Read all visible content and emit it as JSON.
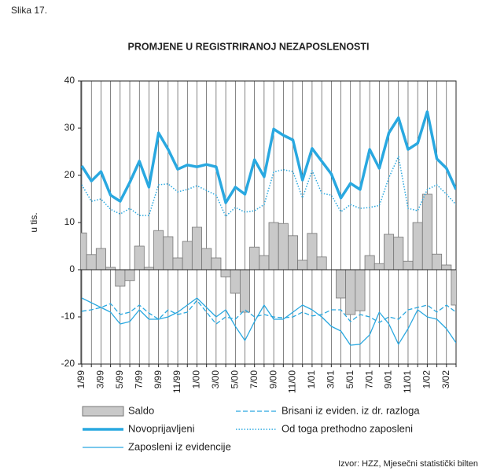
{
  "chart_data": {
    "type": "bar_line",
    "figure_label": "Slika 17.",
    "title": "PROMJENE U REGISTRIRANOJ NEZAPOSLENOSTI",
    "ylabel": "u tis.",
    "source": "Izvor: HZZ, Mjesečni statistički bilten",
    "categories": [
      "1/99",
      null,
      "3/99",
      null,
      "5/99",
      null,
      "7/99",
      null,
      "9/99",
      null,
      "11/99",
      null,
      "1/00",
      null,
      "3/00",
      null,
      "5/00",
      null,
      "7/00",
      null,
      "9/00",
      null,
      "11/00",
      null,
      "1/01",
      null,
      "3/01",
      null,
      "5/01",
      null,
      "7/01",
      null,
      "9/01",
      null,
      "11/01",
      null,
      "1/02",
      null,
      "3/02",
      null
    ],
    "ylim": [
      -20,
      40
    ],
    "yticks": [
      -20,
      -10,
      0,
      10,
      20,
      30,
      40
    ],
    "series": [
      {
        "name": "Saldo",
        "kind": "bar",
        "color": "#c9c9c9",
        "values": [
          7.8,
          3.2,
          4.5,
          0.5,
          -3.5,
          -2.3,
          5,
          0.5,
          8.3,
          7,
          2.5,
          6,
          9,
          4.5,
          2.5,
          -1.5,
          -5,
          -9,
          4.8,
          3,
          10,
          9.8,
          7.2,
          2,
          7.7,
          2.7,
          0,
          -6,
          -9.5,
          -8.7,
          3,
          1.3,
          7.5,
          6.9,
          1.8,
          10,
          16,
          3.3,
          1,
          -7.5
        ]
      },
      {
        "name": "Brisani iz eviden. iz dr. razloga",
        "kind": "dashed",
        "color": "#29a8e0",
        "values": [
          -8.8,
          -8.5,
          -8,
          -7.2,
          -9.5,
          -9,
          -7.5,
          -9.2,
          -10.5,
          -8.5,
          -9.5,
          -9,
          -6.5,
          -9,
          -11.5,
          -10,
          -10.5,
          -8.5,
          -10,
          -9.5,
          -10,
          -10.2,
          -10,
          -9,
          -9.8,
          -9.5,
          -8.5,
          -8.5,
          -11,
          -9.5,
          -10,
          -11.2,
          -10,
          -10.5,
          -8.5,
          -8,
          -7.5,
          -9,
          -7.5,
          -9
        ]
      },
      {
        "name": "Novoprijavljeni",
        "kind": "thick",
        "color": "#29a8e0",
        "values": [
          22,
          18.8,
          20.8,
          15.8,
          14.5,
          18.5,
          23,
          17.5,
          29,
          25.5,
          21.3,
          22.2,
          21.8,
          22.3,
          21.8,
          14.2,
          17.5,
          16,
          23.3,
          19.7,
          29.8,
          28.5,
          27.5,
          19,
          25.7,
          23,
          20.3,
          15.2,
          18.3,
          17,
          25.5,
          21.5,
          29,
          32.2,
          25.5,
          26.8,
          33.5,
          23.5,
          21.5,
          17
        ]
      },
      {
        "name": "Od toga prethodno zaposleni",
        "kind": "dotted",
        "color": "#29a8e0",
        "values": [
          18,
          14.5,
          15,
          12.8,
          11.8,
          13,
          11.5,
          11.5,
          18,
          18.2,
          16.5,
          17,
          17.8,
          16.8,
          15.8,
          11.3,
          13.2,
          12.2,
          12.5,
          13.8,
          20.7,
          21.2,
          20.8,
          15.2,
          21,
          16.2,
          15.8,
          12.3,
          13.8,
          13,
          13.2,
          13.6,
          19.5,
          24,
          13,
          12.5,
          17,
          18,
          16,
          13.8
        ]
      },
      {
        "name": "Zaposleni iz evidencije",
        "kind": "thin",
        "color": "#29a8e0",
        "values": [
          -6,
          -7,
          -8,
          -9,
          -11.5,
          -11,
          -8.5,
          -10.5,
          -10.5,
          -10,
          -9,
          -7.5,
          -6,
          -8,
          -10,
          -8.5,
          -12,
          -15,
          -11,
          -7.5,
          -10.5,
          -10.5,
          -9,
          -7.5,
          -8.5,
          -10,
          -12,
          -13,
          -16,
          -15.8,
          -13.8,
          -9,
          -11.5,
          -15.8,
          -12.5,
          -8.5,
          -10,
          -10.5,
          -12.5,
          -15.5
        ]
      }
    ]
  }
}
